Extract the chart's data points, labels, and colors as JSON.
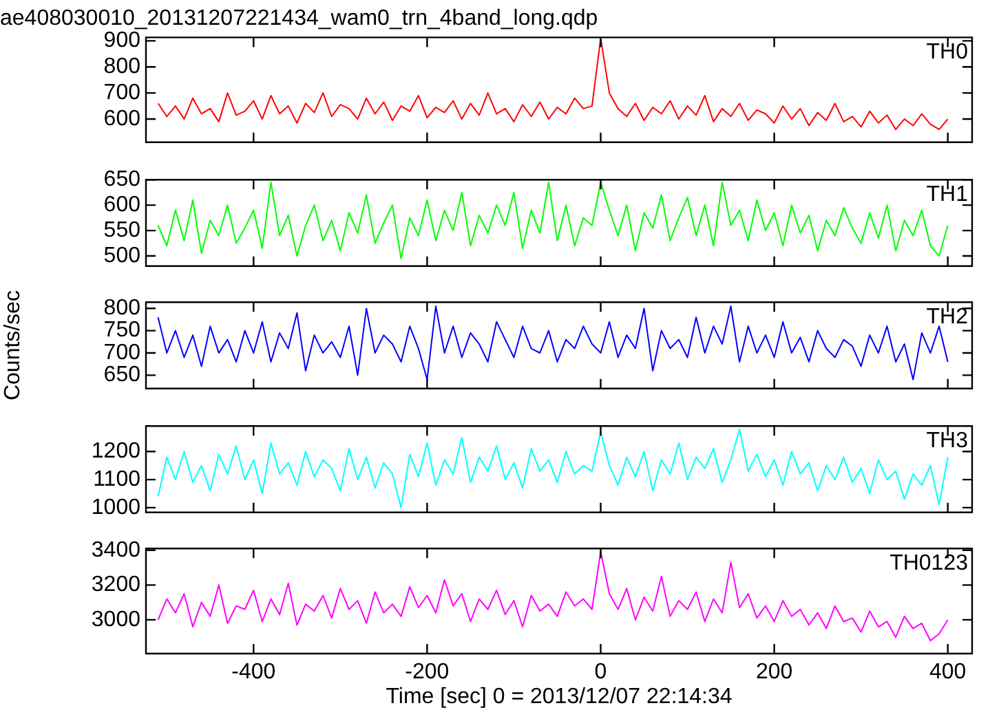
{
  "chart_data": [
    {
      "type": "line",
      "title": "ae408030010_20131207221434_wam0_trn_4band_long.qdp",
      "annotations": [
        "TH0"
      ],
      "marker": "none",
      "tick_labels": "y",
      "xlim": [
        -524,
        428
      ],
      "xticks": [
        -400,
        -200,
        0,
        200,
        400
      ],
      "ylim": [
        511,
        913
      ],
      "yticks": [
        600,
        700,
        800,
        900
      ],
      "x": [
        -510,
        -500,
        -490,
        -480,
        -470,
        -460,
        -450,
        -440,
        -430,
        -420,
        -410,
        -400,
        -390,
        -380,
        -370,
        -360,
        -350,
        -340,
        -330,
        -320,
        -310,
        -300,
        -290,
        -280,
        -270,
        -260,
        -250,
        -240,
        -230,
        -220,
        -210,
        -200,
        -190,
        -180,
        -170,
        -160,
        -150,
        -140,
        -130,
        -120,
        -110,
        -100,
        -90,
        -80,
        -70,
        -60,
        -50,
        -40,
        -30,
        -20,
        -10,
        0,
        10,
        20,
        30,
        40,
        50,
        60,
        70,
        80,
        90,
        100,
        110,
        120,
        130,
        140,
        150,
        160,
        170,
        180,
        190,
        200,
        210,
        220,
        230,
        240,
        250,
        260,
        270,
        280,
        290,
        300,
        310,
        320,
        330,
        340,
        350,
        360,
        370,
        380,
        390,
        400
      ],
      "series": [
        {
          "color": "#ff0000",
          "values": [
            660,
            610,
            650,
            600,
            680,
            620,
            640,
            590,
            700,
            615,
            630,
            670,
            600,
            690,
            620,
            650,
            585,
            660,
            625,
            700,
            610,
            655,
            640,
            600,
            680,
            620,
            665,
            595,
            650,
            630,
            690,
            605,
            645,
            625,
            670,
            600,
            660,
            615,
            700,
            620,
            640,
            590,
            655,
            610,
            665,
            600,
            645,
            620,
            680,
            640,
            650,
            910,
            700,
            640,
            610,
            660,
            595,
            645,
            620,
            670,
            600,
            650,
            615,
            690,
            590,
            640,
            610,
            660,
            595,
            635,
            620,
            585,
            650,
            600,
            640,
            575,
            625,
            595,
            660,
            590,
            610,
            570,
            630,
            585,
            615,
            560,
            600,
            575,
            620,
            580,
            560,
            600
          ]
        }
      ]
    },
    {
      "type": "line",
      "annotations": [
        "TH1"
      ],
      "marker": "none",
      "tick_labels": "y",
      "xlim": [
        -524,
        428
      ],
      "xticks": [
        -400,
        -200,
        0,
        200,
        400
      ],
      "ylim": [
        480,
        650
      ],
      "yticks": [
        500,
        550,
        600,
        650
      ],
      "x": [
        -510,
        -500,
        -490,
        -480,
        -470,
        -460,
        -450,
        -440,
        -430,
        -420,
        -410,
        -400,
        -390,
        -380,
        -370,
        -360,
        -350,
        -340,
        -330,
        -320,
        -310,
        -300,
        -290,
        -280,
        -270,
        -260,
        -250,
        -240,
        -230,
        -220,
        -210,
        -200,
        -190,
        -180,
        -170,
        -160,
        -150,
        -140,
        -130,
        -120,
        -110,
        -100,
        -90,
        -80,
        -70,
        -60,
        -50,
        -40,
        -30,
        -20,
        -10,
        0,
        10,
        20,
        30,
        40,
        50,
        60,
        70,
        80,
        90,
        100,
        110,
        120,
        130,
        140,
        150,
        160,
        170,
        180,
        190,
        200,
        210,
        220,
        230,
        240,
        250,
        260,
        270,
        280,
        290,
        300,
        310,
        320,
        330,
        340,
        350,
        360,
        370,
        380,
        390,
        400
      ],
      "series": [
        {
          "color": "#00ff00",
          "values": [
            560,
            520,
            590,
            530,
            610,
            505,
            570,
            540,
            600,
            525,
            555,
            590,
            515,
            645,
            540,
            580,
            500,
            560,
            600,
            530,
            570,
            510,
            585,
            545,
            620,
            525,
            565,
            600,
            495,
            575,
            540,
            610,
            530,
            590,
            550,
            625,
            520,
            580,
            545,
            600,
            560,
            625,
            515,
            590,
            545,
            645,
            530,
            600,
            520,
            575,
            560,
            645,
            590,
            540,
            600,
            510,
            585,
            555,
            620,
            530,
            575,
            615,
            540,
            600,
            520,
            645,
            560,
            590,
            530,
            610,
            550,
            585,
            520,
            600,
            545,
            580,
            510,
            570,
            540,
            595,
            555,
            525,
            585,
            535,
            600,
            510,
            570,
            540,
            590,
            520,
            500,
            560
          ]
        }
      ]
    },
    {
      "type": "line",
      "ylabel": "Counts/sec",
      "annotations": [
        "TH2"
      ],
      "marker": "none",
      "tick_labels": "y",
      "xlim": [
        -524,
        428
      ],
      "xticks": [
        -400,
        -200,
        0,
        200,
        400
      ],
      "ylim": [
        620,
        814
      ],
      "yticks": [
        650,
        700,
        750,
        800
      ],
      "x": [
        -510,
        -500,
        -490,
        -480,
        -470,
        -460,
        -450,
        -440,
        -430,
        -420,
        -410,
        -400,
        -390,
        -380,
        -370,
        -360,
        -350,
        -340,
        -330,
        -320,
        -310,
        -300,
        -290,
        -280,
        -270,
        -260,
        -250,
        -240,
        -230,
        -220,
        -210,
        -200,
        -190,
        -180,
        -170,
        -160,
        -150,
        -140,
        -130,
        -120,
        -110,
        -100,
        -90,
        -80,
        -70,
        -60,
        -50,
        -40,
        -30,
        -20,
        -10,
        0,
        10,
        20,
        30,
        40,
        50,
        60,
        70,
        80,
        90,
        100,
        110,
        120,
        130,
        140,
        150,
        160,
        170,
        180,
        190,
        200,
        210,
        220,
        230,
        240,
        250,
        260,
        270,
        280,
        290,
        300,
        310,
        320,
        330,
        340,
        350,
        360,
        370,
        380,
        390,
        400
      ],
      "series": [
        {
          "color": "#0000ff",
          "values": [
            780,
            700,
            750,
            690,
            740,
            670,
            760,
            700,
            730,
            680,
            750,
            700,
            770,
            680,
            745,
            710,
            790,
            660,
            740,
            700,
            725,
            690,
            760,
            650,
            800,
            700,
            740,
            720,
            680,
            760,
            710,
            640,
            805,
            700,
            760,
            690,
            745,
            720,
            680,
            770,
            730,
            690,
            760,
            710,
            700,
            750,
            680,
            730,
            710,
            760,
            720,
            700,
            770,
            690,
            740,
            710,
            800,
            660,
            750,
            710,
            730,
            690,
            780,
            700,
            760,
            720,
            805,
            680,
            760,
            700,
            740,
            690,
            770,
            700,
            735,
            680,
            750,
            710,
            690,
            730,
            715,
            670,
            740,
            700,
            760,
            680,
            720,
            640,
            745,
            700,
            760,
            680
          ]
        }
      ]
    },
    {
      "type": "line",
      "annotations": [
        "TH3"
      ],
      "marker": "none",
      "tick_labels": "y",
      "xlim": [
        -524,
        428
      ],
      "xticks": [
        -400,
        -200,
        0,
        200,
        400
      ],
      "ylim": [
        983,
        1291
      ],
      "yticks": [
        1000,
        1100,
        1200
      ],
      "x": [
        -510,
        -500,
        -490,
        -480,
        -470,
        -460,
        -450,
        -440,
        -430,
        -420,
        -410,
        -400,
        -390,
        -380,
        -370,
        -360,
        -350,
        -340,
        -330,
        -320,
        -310,
        -300,
        -290,
        -280,
        -270,
        -260,
        -250,
        -240,
        -230,
        -220,
        -210,
        -200,
        -190,
        -180,
        -170,
        -160,
        -150,
        -140,
        -130,
        -120,
        -110,
        -100,
        -90,
        -80,
        -70,
        -60,
        -50,
        -40,
        -30,
        -20,
        -10,
        0,
        10,
        20,
        30,
        40,
        50,
        60,
        70,
        80,
        90,
        100,
        110,
        120,
        130,
        140,
        150,
        160,
        170,
        180,
        190,
        200,
        210,
        220,
        230,
        240,
        250,
        260,
        270,
        280,
        290,
        300,
        310,
        320,
        330,
        340,
        350,
        360,
        370,
        380,
        390,
        400
      ],
      "series": [
        {
          "color": "#00ffff",
          "values": [
            1040,
            1180,
            1100,
            1200,
            1090,
            1150,
            1060,
            1190,
            1120,
            1220,
            1100,
            1170,
            1050,
            1230,
            1120,
            1160,
            1080,
            1200,
            1110,
            1170,
            1140,
            1060,
            1210,
            1100,
            1180,
            1070,
            1160,
            1120,
            1000,
            1190,
            1110,
            1230,
            1080,
            1170,
            1120,
            1250,
            1090,
            1180,
            1130,
            1220,
            1100,
            1160,
            1070,
            1210,
            1130,
            1170,
            1090,
            1200,
            1120,
            1150,
            1130,
            1270,
            1150,
            1080,
            1180,
            1110,
            1200,
            1060,
            1170,
            1120,
            1230,
            1100,
            1180,
            1140,
            1210,
            1090,
            1170,
            1280,
            1130,
            1190,
            1110,
            1170,
            1080,
            1200,
            1120,
            1160,
            1060,
            1150,
            1100,
            1180,
            1090,
            1140,
            1050,
            1170,
            1100,
            1130,
            1030,
            1120,
            1080,
            1150,
            1010,
            1180
          ]
        }
      ]
    },
    {
      "type": "line",
      "xlabel": "Time [sec] 0 = 2013/12/07 22:14:34",
      "annotations": [
        "TH0123"
      ],
      "marker": "none",
      "xlim": [
        -524,
        428
      ],
      "xticks": [
        -400,
        -200,
        0,
        200,
        400
      ],
      "ylim": [
        2806,
        3410
      ],
      "yticks": [
        3000,
        3200,
        3400
      ],
      "x": [
        -510,
        -500,
        -490,
        -480,
        -470,
        -460,
        -450,
        -440,
        -430,
        -420,
        -410,
        -400,
        -390,
        -380,
        -370,
        -360,
        -350,
        -340,
        -330,
        -320,
        -310,
        -300,
        -290,
        -280,
        -270,
        -260,
        -250,
        -240,
        -230,
        -220,
        -210,
        -200,
        -190,
        -180,
        -170,
        -160,
        -150,
        -140,
        -130,
        -120,
        -110,
        -100,
        -90,
        -80,
        -70,
        -60,
        -50,
        -40,
        -30,
        -20,
        -10,
        0,
        10,
        20,
        30,
        40,
        50,
        60,
        70,
        80,
        90,
        100,
        110,
        120,
        130,
        140,
        150,
        160,
        170,
        180,
        190,
        200,
        210,
        220,
        230,
        240,
        250,
        260,
        270,
        280,
        290,
        300,
        310,
        320,
        330,
        340,
        350,
        360,
        370,
        380,
        390,
        400
      ],
      "series": [
        {
          "color": "#ff00ff",
          "values": [
            3000,
            3120,
            3040,
            3150,
            2960,
            3100,
            3020,
            3200,
            2980,
            3080,
            3060,
            3170,
            2990,
            3120,
            3030,
            3210,
            2970,
            3090,
            3050,
            3140,
            3010,
            3180,
            3060,
            3110,
            2980,
            3160,
            3040,
            3090,
            3020,
            3190,
            3070,
            3140,
            3040,
            3230,
            3080,
            3150,
            2990,
            3120,
            3060,
            3170,
            3030,
            3110,
            2960,
            3140,
            3050,
            3090,
            3020,
            3160,
            3080,
            3120,
            3060,
            3390,
            3150,
            3060,
            3180,
            3000,
            3130,
            3050,
            3250,
            3020,
            3110,
            3060,
            3160,
            2990,
            3120,
            3040,
            3330,
            3070,
            3150,
            3010,
            3080,
            2990,
            3110,
            3020,
            3060,
            2970,
            3040,
            2950,
            3080,
            2990,
            3010,
            2930,
            3050,
            2960,
            2990,
            2900,
            3020,
            2950,
            2980,
            2880,
            2920,
            3000
          ]
        }
      ]
    }
  ]
}
